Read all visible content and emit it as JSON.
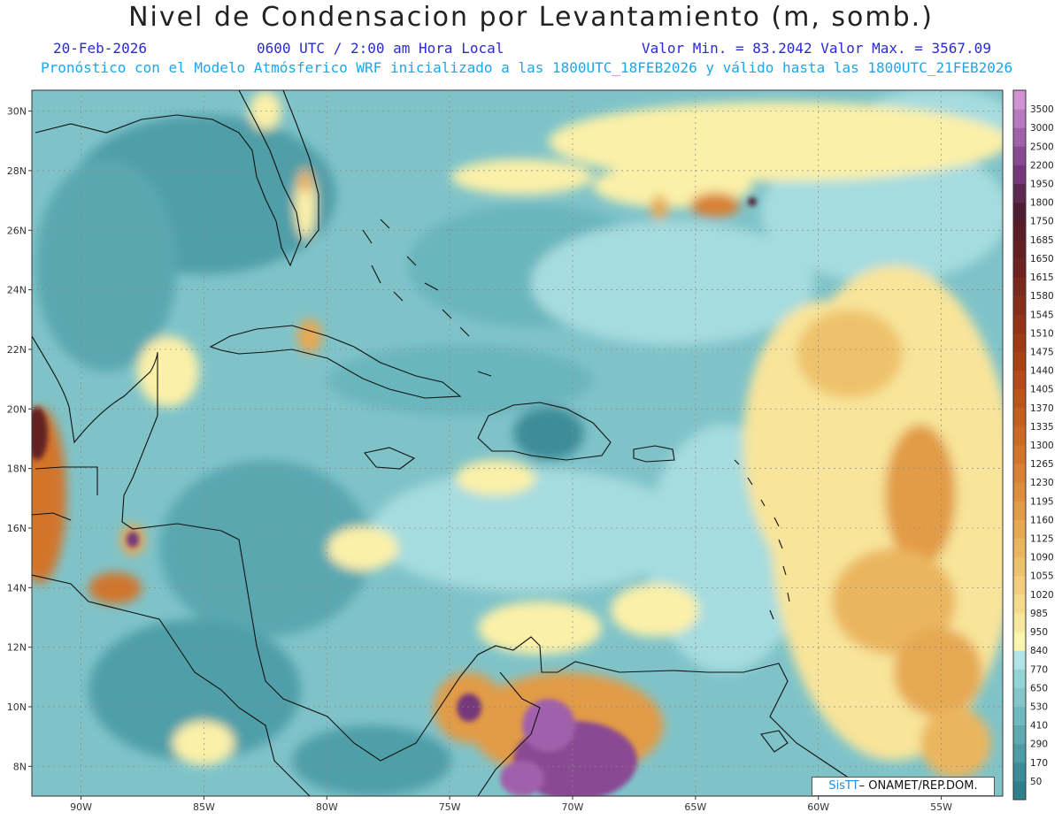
{
  "header": {
    "title": "Nivel de Condensacion por Levantamiento (m, somb.)",
    "date": "20-Feb-2026",
    "time": "0600 UTC / 2:00 am Hora Local",
    "minmax": "Valor Min. = 83.2042  Valor Max. = 3567.09",
    "description": "Pronóstico con el Modelo Atmósferico WRF inicializado a las 1800UTC_18FEB2026 y válido hasta las  1800UTC_21FEB2026"
  },
  "map": {
    "lon_range": [
      -92,
      -52.5
    ],
    "lat_range": [
      7,
      30.7
    ],
    "lat_ticks": [
      "8N",
      "10N",
      "12N",
      "14N",
      "16N",
      "18N",
      "20N",
      "22N",
      "24N",
      "26N",
      "28N",
      "30N"
    ],
    "lon_ticks": [
      "90W",
      "85W",
      "80W",
      "75W",
      "70W",
      "65W",
      "60W",
      "55W"
    ]
  },
  "colorbar": {
    "levels": [
      "50",
      "170",
      "290",
      "410",
      "530",
      "650",
      "770",
      "840",
      "950",
      "985",
      "1020",
      "1055",
      "1090",
      "1125",
      "1160",
      "1195",
      "1230",
      "1265",
      "1300",
      "1335",
      "1370",
      "1405",
      "1440",
      "1475",
      "1510",
      "1545",
      "1580",
      "1615",
      "1650",
      "1685",
      "1750",
      "1800",
      "1950",
      "2200",
      "2500",
      "3000",
      "3500"
    ],
    "colors": [
      "#2f7f8d",
      "#3d8c98",
      "#4d9ba5",
      "#5eaab2",
      "#6fb9bf",
      "#82c6cb",
      "#96d3d6",
      "#b0e4e6",
      "#fbf5b0",
      "#f8e89e",
      "#f5dc8d",
      "#f2cf7c",
      "#eec26c",
      "#eab55e",
      "#e6a852",
      "#e29b47",
      "#dd8e3d",
      "#d88134",
      "#d2752c",
      "#cc6a25",
      "#c55f1f",
      "#bd551b",
      "#b44b18",
      "#aa4216",
      "#9f3a16",
      "#933317",
      "#872d1a",
      "#7b281d",
      "#6f2320",
      "#632023",
      "#581d27",
      "#4f1e32",
      "#5e2a52",
      "#74387a",
      "#8a4a93",
      "#a160ab",
      "#b978c0",
      "#cf92d3"
    ]
  },
  "credit": {
    "sis": "SisTT",
    "text": " ONAMET/REP.DOM."
  }
}
